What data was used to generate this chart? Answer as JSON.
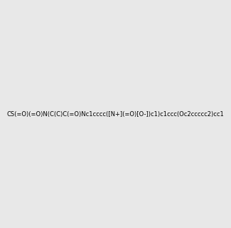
{
  "smiles": "CS(=O)(=O)N(C(C)C(=O)Nc1cccc([N+](=O)[O-])c1)c1ccc(Oc2ccccc2)cc1",
  "image_size": 300,
  "background_color": "#e8e8e8",
  "title": ""
}
